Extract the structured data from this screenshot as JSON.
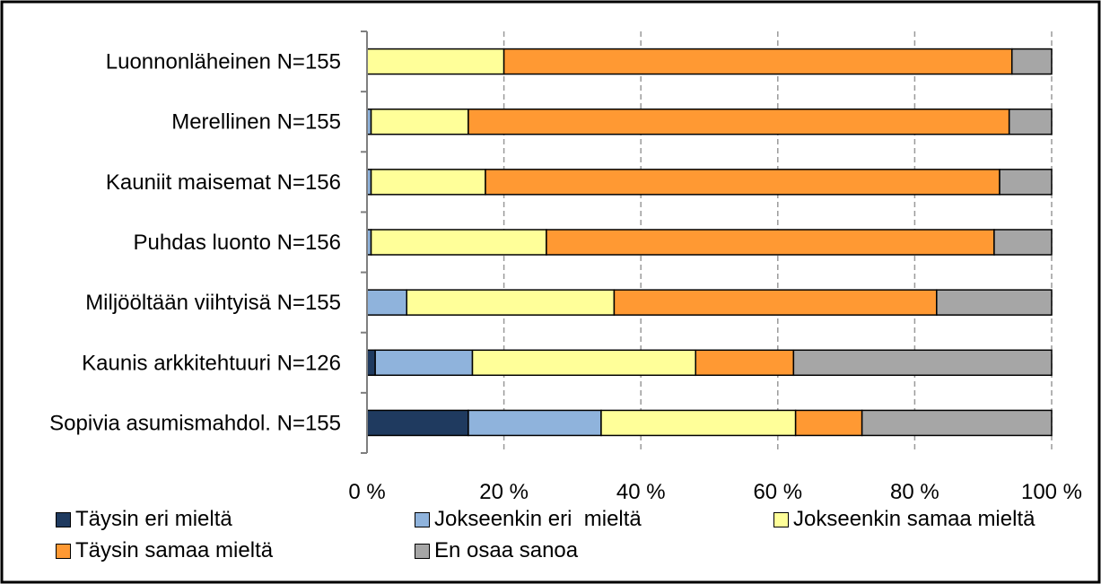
{
  "chart_data": {
    "type": "bar",
    "orientation": "horizontal",
    "stacked": "percent",
    "categories": [
      "Luonnonläheinen N=155",
      "Merellinen N=155",
      "Kauniit maisemat N=156",
      "Puhdas luonto N=156",
      "Miljööltään viihtyisä N=155",
      "Kaunis arkkitehtuuri N=126",
      "Sopivia asumismahdol. N=155"
    ],
    "series": [
      {
        "name": "Täysin eri mieltä",
        "color": "#1f3a5f",
        "values": [
          0,
          0,
          0,
          0,
          0,
          1.2,
          14.8
        ]
      },
      {
        "name": "Jokseenkin eri  mieltä",
        "color": "#8fb3dc",
        "values": [
          0,
          0.6,
          0.6,
          0.6,
          5.8,
          14.2,
          19.4
        ]
      },
      {
        "name": "Jokseenkin samaa mieltä",
        "color": "#ffff99",
        "values": [
          20,
          14.2,
          16.7,
          25.6,
          30.3,
          32.6,
          28.4
        ]
      },
      {
        "name": "Täysin samaa mieltä",
        "color": "#ff9933",
        "values": [
          74.2,
          79,
          75.1,
          65.4,
          47.1,
          14.3,
          9.7
        ]
      },
      {
        "name": "En osaa sanoa",
        "color": "#a6a6a6",
        "values": [
          5.8,
          6.2,
          7.6,
          8.4,
          16.8,
          37.7,
          27.7
        ]
      }
    ],
    "x_ticks": [
      "0 %",
      "20 %",
      "40 %",
      "60 %",
      "80 %",
      "100 %"
    ],
    "xlim": [
      0,
      100
    ],
    "grid": "vertical dashed",
    "legend_position": "bottom"
  }
}
